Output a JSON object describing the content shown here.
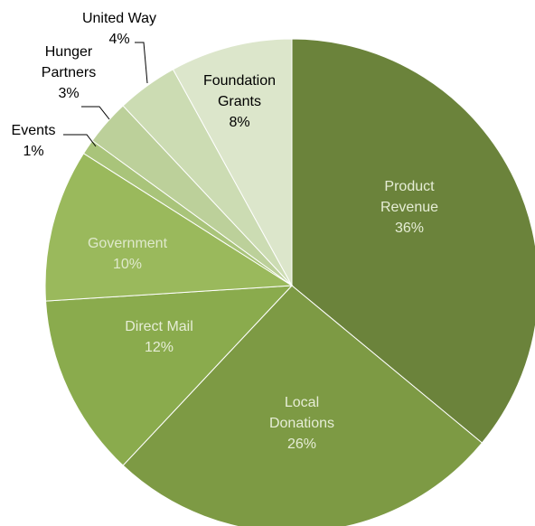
{
  "chart_data": {
    "type": "pie",
    "slices": [
      {
        "label_lines": [
          "Product",
          "Revenue"
        ],
        "percent_label": "36%",
        "value": 36,
        "color": "#6b833b",
        "text_color": "#e6edd6"
      },
      {
        "label_lines": [
          "Local",
          "Donations"
        ],
        "percent_label": "26%",
        "value": 26,
        "color": "#7d9a44",
        "text_color": "#e6edd6"
      },
      {
        "label_lines": [
          "Direct Mail"
        ],
        "percent_label": "12%",
        "value": 12,
        "color": "#8aab4d",
        "text_color": "#e6edd6"
      },
      {
        "label_lines": [
          "Government"
        ],
        "percent_label": "10%",
        "value": 10,
        "color": "#9ab95c",
        "text_color": "#dfe9cc"
      },
      {
        "label_lines": [
          "Events"
        ],
        "percent_label": "1%",
        "value": 1,
        "color": "#a9c47a",
        "text_color": "#000000"
      },
      {
        "label_lines": [
          "Hunger",
          "Partners"
        ],
        "percent_label": "3%",
        "value": 3,
        "color": "#bcd09a",
        "text_color": "#000000"
      },
      {
        "label_lines": [
          "United Way"
        ],
        "percent_label": "4%",
        "value": 4,
        "color": "#ccdcb3",
        "text_color": "#000000"
      },
      {
        "label_lines": [
          "Foundation",
          "Grants"
        ],
        "percent_label": "8%",
        "value": 8,
        "color": "#dce6cb",
        "text_color": "#000000"
      }
    ],
    "title": "",
    "start_angle_deg": 0,
    "direction": "clockwise",
    "legend": "none",
    "data_labels": "inside-and-outside-with-leader-lines"
  }
}
